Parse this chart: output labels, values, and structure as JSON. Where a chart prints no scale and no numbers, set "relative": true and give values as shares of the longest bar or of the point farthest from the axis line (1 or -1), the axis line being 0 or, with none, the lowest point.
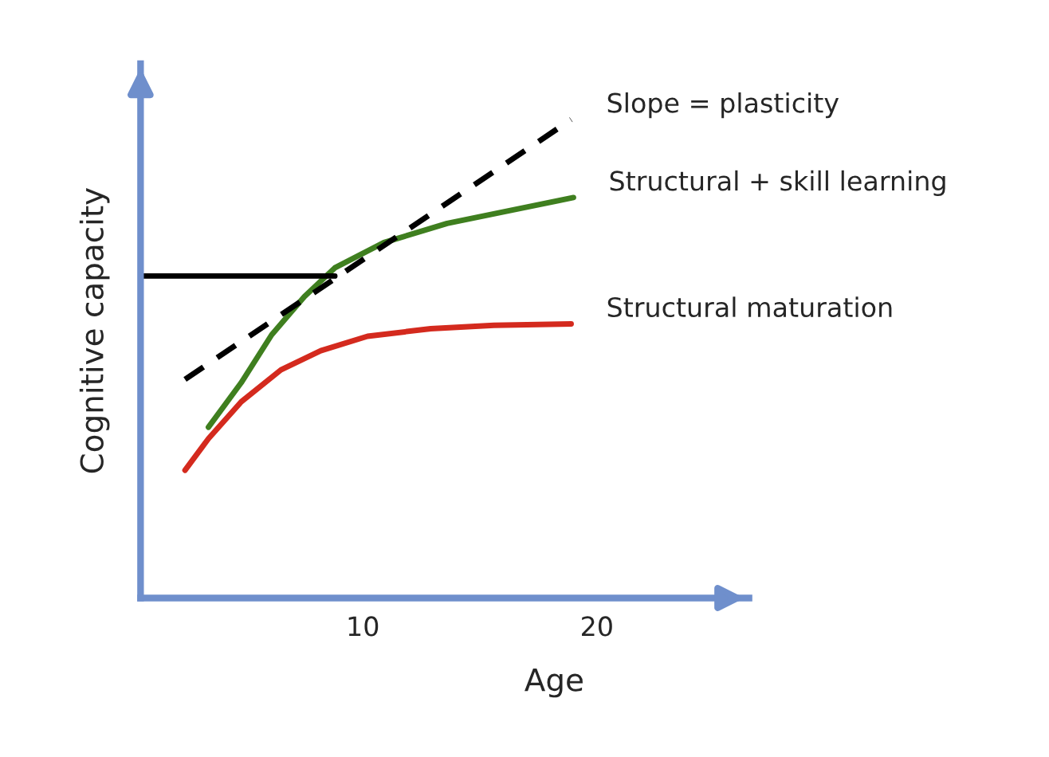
{
  "chart_data": {
    "type": "line",
    "relative": true,
    "xlabel": "Age",
    "ylabel": "Cognitive capacity",
    "xlim": [
      0.5,
      26.5
    ],
    "xticks": [
      10,
      20
    ],
    "grid": false,
    "legend": false,
    "tick_labels": "x",
    "series": [
      {
        "name": "Structural maturation",
        "color": "#d42a1e",
        "x": [
          2.4,
          3.4,
          4.8,
          6.5,
          8.2,
          10.2,
          12.9,
          15.6,
          18.9
        ],
        "values": [
          0.267,
          0.333,
          0.41,
          0.477,
          0.517,
          0.547,
          0.563,
          0.57,
          0.573
        ]
      },
      {
        "name": "Structural + skill learning",
        "color": "#3f7f1f",
        "x": [
          3.4,
          4.8,
          6.1,
          7.5,
          8.8,
          10.9,
          13.6,
          16.3,
          19.0
        ],
        "values": [
          0.357,
          0.45,
          0.55,
          0.63,
          0.69,
          0.743,
          0.783,
          0.81,
          0.837
        ]
      },
      {
        "name": "Slope = plasticity",
        "color": "#000000",
        "line_style": "dashed",
        "x": [
          2.4,
          18.9
        ],
        "values": [
          0.457,
          1.0
        ]
      },
      {
        "color": "#000000",
        "x": [
          0.5,
          8.8
        ],
        "values": [
          0.673,
          0.673
        ]
      }
    ]
  }
}
